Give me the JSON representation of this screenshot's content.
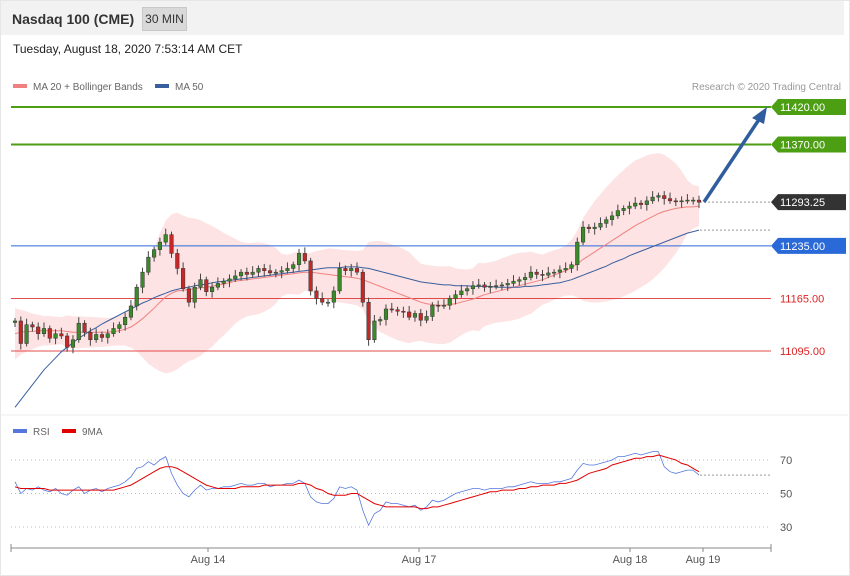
{
  "header": {
    "title": "Nasdaq 100 (CME)",
    "timeframe": "30 MIN",
    "datetime": "Tuesday, August 18, 2020 7:53:14 AM CET"
  },
  "legend": {
    "ma20": "MA 20 + Bollinger Bands",
    "ma50": "MA 50",
    "ma20_color": "#f08080",
    "ma50_color": "#3a5f9f",
    "credit": "Research © 2020 Trading Central"
  },
  "rsi_legend": {
    "rsi": "RSI",
    "ma": "9MA",
    "rsi_color": "#5577dd",
    "ma_color": "#e00000"
  },
  "chart_data": [
    {
      "type": "line",
      "x_ticks": [
        "Aug 14",
        "Aug 17",
        "Aug 18",
        "Aug 19"
      ],
      "ylim": [
        11030,
        11460
      ],
      "levels": [
        {
          "label": "11420.00",
          "value": 11420,
          "color": "#4c9e12",
          "kind": "resistance"
        },
        {
          "label": "11370.00",
          "value": 11370,
          "color": "#4c9e12",
          "kind": "resistance"
        },
        {
          "label": "11293.25",
          "value": 11293.25,
          "color": "#333333",
          "kind": "last"
        },
        {
          "label": "11235.00",
          "value": 11235,
          "color": "#2a6ad8",
          "kind": "pivot"
        },
        {
          "label": "11165.00",
          "value": 11165,
          "color": "#dd2222",
          "kind": "support"
        },
        {
          "label": "11095.00",
          "value": 11095,
          "color": "#dd2222",
          "kind": "support"
        }
      ],
      "close": [
        11135,
        11105,
        11130,
        11127,
        11118,
        11125,
        11112,
        11118,
        11115,
        11100,
        11110,
        11132,
        11120,
        11110,
        11117,
        11113,
        11118,
        11125,
        11130,
        11140,
        11155,
        11180,
        11200,
        11220,
        11230,
        11240,
        11250,
        11225,
        11205,
        11178,
        11160,
        11180,
        11190,
        11174,
        11180,
        11185,
        11188,
        11191,
        11195,
        11200,
        11197,
        11200,
        11205,
        11202,
        11199,
        11200,
        11202,
        11205,
        11210,
        11225,
        11215,
        11175,
        11165,
        11160,
        11160,
        11175,
        11205,
        11202,
        11205,
        11200,
        11160,
        11110,
        11135,
        11137,
        11151,
        11150,
        11148,
        11147,
        11140,
        11145,
        11136,
        11141,
        11156,
        11155,
        11156,
        11165,
        11170,
        11175,
        11178,
        11182,
        11183,
        11180,
        11181,
        11182,
        11183,
        11185,
        11188,
        11190,
        11193,
        11200,
        11197,
        11196,
        11199,
        11200,
        11203,
        11205,
        11210,
        11240,
        11260,
        11258,
        11260,
        11265,
        11270,
        11275,
        11282,
        11285,
        11288,
        11292,
        11290,
        11295,
        11300,
        11302,
        11298,
        11295,
        11294,
        11295,
        11296,
        11296,
        11293.25
      ],
      "ma20": [
        11118,
        11120,
        11121,
        11121,
        11122,
        11122,
        11122,
        11122,
        11122,
        11121,
        11120,
        11120,
        11120,
        11120,
        11120,
        11120,
        11120,
        11121,
        11122,
        11124,
        11127,
        11132,
        11138,
        11145,
        11152,
        11160,
        11167,
        11172,
        11175,
        11176,
        11177,
        11178,
        11179,
        11180,
        11181,
        11183,
        11184,
        11186,
        11188,
        11189,
        11190,
        11191,
        11192,
        11193,
        11194,
        11195,
        11196,
        11197,
        11198,
        11199,
        11200,
        11200,
        11199,
        11198,
        11197,
        11196,
        11195,
        11194,
        11193,
        11192,
        11190,
        11187,
        11184,
        11181,
        11178,
        11175,
        11172,
        11169,
        11166,
        11163,
        11160,
        11158,
        11157,
        11156,
        11156,
        11157,
        11158,
        11160,
        11162,
        11164,
        11167,
        11170,
        11172,
        11174,
        11176,
        11178,
        11180,
        11182,
        11184,
        11186,
        11188,
        11190,
        11193,
        11196,
        11199,
        11202,
        11206,
        11211,
        11217,
        11222,
        11227,
        11232,
        11237,
        11242,
        11247,
        11252,
        11257,
        11262,
        11266,
        11270,
        11274,
        11278,
        11281,
        11283,
        11285,
        11286,
        11287,
        11287,
        11288
      ],
      "ma50": [
        11020,
        11030,
        11040,
        11050,
        11060,
        11070,
        11078,
        11086,
        11094,
        11100,
        11106,
        11112,
        11117,
        11122,
        11126,
        11131,
        11135,
        11139,
        11143,
        11147,
        11151,
        11155,
        11159,
        11162,
        11166,
        11169,
        11172,
        11175,
        11177,
        11179,
        11180,
        11182,
        11183,
        11184,
        11186,
        11187,
        11188,
        11189,
        11190,
        11191,
        11192,
        11193,
        11194,
        11195,
        11196,
        11197,
        11198,
        11199,
        11200,
        11201,
        11202,
        11203,
        11204,
        11205,
        11206,
        11206,
        11206,
        11207,
        11207,
        11207,
        11206,
        11205,
        11203,
        11201,
        11199,
        11197,
        11195,
        11193,
        11191,
        11189,
        11187,
        11186,
        11185,
        11184,
        11183,
        11183,
        11182,
        11182,
        11182,
        11181,
        11181,
        11181,
        11181,
        11180,
        11180,
        11180,
        11180,
        11180,
        11181,
        11181,
        11182,
        11183,
        11184,
        11185,
        11186,
        11188,
        11190,
        11193,
        11196,
        11199,
        11202,
        11205,
        11208,
        11212,
        11215,
        11218,
        11222,
        11225,
        11228,
        11231,
        11234,
        11237,
        11240,
        11243,
        11246,
        11249,
        11252,
        11254,
        11256
      ]
    },
    {
      "type": "line",
      "title": "RSI",
      "y_ticks": [
        70,
        50,
        30
      ],
      "ylim": [
        10,
        90
      ],
      "rsi": [
        57,
        50,
        53,
        52,
        54,
        52,
        51,
        53,
        50,
        49,
        52,
        54,
        50,
        52,
        53,
        51,
        53,
        54,
        55,
        57,
        60,
        65,
        66,
        69,
        67,
        70,
        72,
        62,
        55,
        50,
        48,
        52,
        55,
        52,
        53,
        53,
        54,
        54,
        55,
        56,
        55,
        55,
        56,
        56,
        54,
        55,
        55,
        56,
        56,
        58,
        56,
        48,
        45,
        44,
        44,
        47,
        54,
        53,
        54,
        52,
        40,
        31,
        38,
        40,
        45,
        44,
        44,
        43,
        42,
        43,
        40,
        42,
        46,
        45,
        46,
        48,
        50,
        51,
        52,
        53,
        53,
        52,
        53,
        53,
        53,
        54,
        54,
        55,
        56,
        57,
        56,
        56,
        56,
        57,
        57,
        58,
        59,
        64,
        68,
        67,
        67,
        68,
        69,
        70,
        72,
        72,
        73,
        74,
        73,
        74,
        75,
        75,
        66,
        63,
        62,
        63,
        64,
        64,
        61
      ],
      "ma9": [
        54,
        53,
        53,
        53,
        53,
        53,
        52,
        52,
        52,
        52,
        52,
        52,
        52,
        52,
        52,
        52,
        52,
        52,
        53,
        54,
        55,
        57,
        59,
        61,
        63,
        65,
        66,
        66,
        65,
        63,
        61,
        59,
        57,
        55,
        54,
        53,
        53,
        53,
        53,
        54,
        54,
        54,
        54,
        55,
        55,
        55,
        55,
        55,
        55,
        56,
        56,
        55,
        53,
        52,
        50,
        49,
        49,
        49,
        50,
        50,
        48,
        46,
        44,
        43,
        42,
        42,
        42,
        42,
        42,
        42,
        41,
        41,
        42,
        42,
        43,
        44,
        45,
        46,
        47,
        48,
        49,
        50,
        51,
        51,
        52,
        52,
        52,
        53,
        53,
        54,
        54,
        55,
        55,
        55,
        56,
        56,
        57,
        58,
        60,
        62,
        63,
        64,
        65,
        67,
        68,
        69,
        70,
        71,
        71,
        72,
        72,
        73,
        72,
        71,
        70,
        68,
        67,
        65,
        63
      ]
    }
  ]
}
